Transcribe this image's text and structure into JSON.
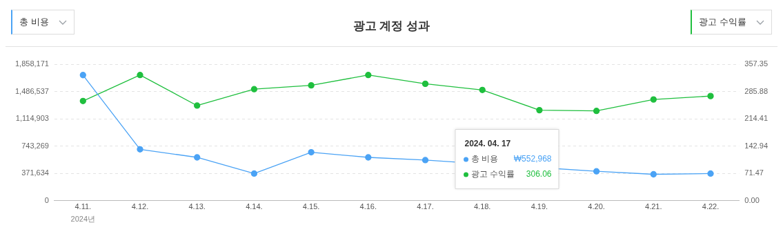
{
  "chart_data": {
    "type": "line",
    "title": "광고 계정 성과",
    "legend": "right",
    "grid": "y",
    "marker": "circle",
    "line_style": "solid",
    "categories": [
      "4.11.",
      "4.12.",
      "4.13.",
      "4.14.",
      "4.15.",
      "4.16.",
      "4.17.",
      "4.18.",
      "4.19.",
      "4.20.",
      "4.21.",
      "4.22."
    ],
    "series": [
      {
        "name": "총 비용",
        "color": "#4ba3f5",
        "values": [
          1710000,
          700000,
          590000,
          370000,
          660000,
          590000,
          552968,
          null,
          null,
          400000,
          360000,
          370000
        ]
      },
      {
        "name": "광고 수익률",
        "color": "#1fbf3e",
        "axis": "y2",
        "values": [
          261,
          329,
          249,
          292,
          302,
          329,
          306.06,
          290,
          237,
          235,
          265,
          274
        ]
      }
    ],
    "ylim": [
      0,
      1858171
    ],
    "yticks": [
      {
        "value": 0,
        "label": "0"
      },
      {
        "value": 371634,
        "label": "371,634"
      },
      {
        "value": 743269,
        "label": "743,269"
      },
      {
        "value": 1114903,
        "label": "1,114,903"
      },
      {
        "value": 1486537,
        "label": "1,486,537"
      },
      {
        "value": 1858171,
        "label": "1,858,171"
      }
    ],
    "y2lim": [
      0,
      357.35
    ],
    "y2ticks": [
      {
        "value": 0,
        "label": "0.00"
      },
      {
        "value": 71.47,
        "label": "71.47"
      },
      {
        "value": 142.94,
        "label": "142.94"
      },
      {
        "value": 214.41,
        "label": "214.41"
      },
      {
        "value": 285.88,
        "label": "285.88"
      },
      {
        "value": 357.35,
        "label": "357.35"
      }
    ],
    "annotations": [
      "2024년",
      "2024. 04. 17",
      "₩552,968",
      "306.06"
    ]
  }
}
